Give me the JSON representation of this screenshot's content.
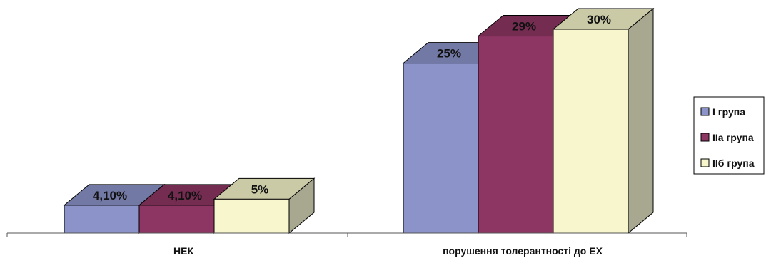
{
  "chart_data": {
    "type": "bar",
    "three_d": true,
    "categories": [
      "НЕК",
      "порушення толерантності до ЕХ"
    ],
    "series": [
      {
        "name": "І група",
        "values": [
          4.1,
          25
        ],
        "labels": [
          "4,10%",
          "25%"
        ],
        "color": "#8C93C9"
      },
      {
        "name": "ІІа група",
        "values": [
          4.1,
          29
        ],
        "labels": [
          "4,10%",
          "29%"
        ],
        "color": "#8E3663"
      },
      {
        "name": "ІІб група",
        "values": [
          5,
          30
        ],
        "labels": [
          "5%",
          "30%"
        ],
        "color": "#F8F6CC"
      }
    ],
    "ylim": [
      0,
      30
    ],
    "grid": false,
    "legend": "right"
  }
}
